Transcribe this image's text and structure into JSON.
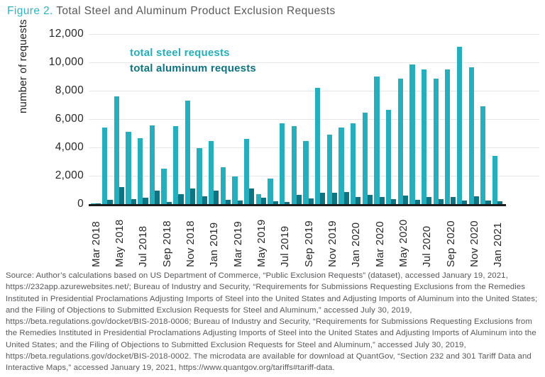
{
  "figure": {
    "label": "Figure 2.",
    "title": " Total Steel and Aluminum Product Exclusion Requests"
  },
  "chart_data": {
    "type": "bar",
    "title": "Figure 2. Total Steel and Aluminum Product Exclusion Requests",
    "xlabel": "",
    "ylabel": "number of requests",
    "ylim": [
      0,
      12000
    ],
    "ytick_step": 2000,
    "yticks": [
      "12,000",
      "10,000",
      "8,000",
      "6,000",
      "4,000",
      "2,000",
      "0"
    ],
    "grid": "horizontal",
    "legend_position": "top-left-inside",
    "categories": [
      "Mar 2018",
      "Apr 2018",
      "May 2018",
      "Jun 2018",
      "Jul 2018",
      "Aug 2018",
      "Sep 2018",
      "Oct 2018",
      "Nov 2018",
      "Dec 2018",
      "Jan 2019",
      "Feb 2019",
      "Mar 2019",
      "Apr 2019",
      "May 2019",
      "Jun 2019",
      "Jul 2019",
      "Aug 2019",
      "Sep 2019",
      "Oct 2019",
      "Nov 2019",
      "Dec 2019",
      "Jan 2020",
      "Feb 2020",
      "Mar 2020",
      "Apr 2020",
      "May 2020",
      "Jun 2020",
      "Jul 2020",
      "Aug 2020",
      "Sep 2020",
      "Oct 2020",
      "Nov 2020",
      "Dec 2020",
      "Jan 2021"
    ],
    "x_tick_labels": [
      "Mar 2018",
      "May 2018",
      "Jul 2018",
      "Sep 2018",
      "Nov 2018",
      "Jan 2019",
      "Mar 2019",
      "May 2019",
      "Jul 2019",
      "Sep 2019",
      "Nov 2019",
      "Jan 2020",
      "Mar 2020",
      "May 2020",
      "Jul 2020",
      "Sep 2020",
      "Nov 2020",
      "Jan 2021"
    ],
    "series": [
      {
        "name": "total steel requests",
        "color": "#26aebd",
        "values": [
          60,
          5400,
          7600,
          5100,
          4650,
          5550,
          2500,
          5500,
          7300,
          3950,
          4450,
          2600,
          1950,
          4600,
          700,
          1800,
          5700,
          5500,
          4450,
          8200,
          4900,
          5400,
          5700,
          6450,
          9000,
          6650,
          8850,
          9850,
          9500,
          8850,
          9500,
          11100,
          9650,
          6900,
          3400
        ]
      },
      {
        "name": "total aluminum requests",
        "color": "#0e7482",
        "values": [
          30,
          300,
          1200,
          350,
          450,
          950,
          150,
          700,
          1100,
          550,
          950,
          300,
          250,
          1100,
          450,
          200,
          150,
          650,
          400,
          800,
          800,
          850,
          500,
          650,
          500,
          350,
          600,
          300,
          500,
          350,
          500,
          250,
          550,
          250,
          200
        ]
      }
    ]
  },
  "source": {
    "text": "Source: Author’s calculations based on US Department of Commerce, “Public Exclusion Requests” (dataset), accessed January 19, 2021, https://232app.azurewebsites.net/; Bureau of Industry and Security, “Requirements for Submissions Requesting Exclusions from the Remedies Instituted in Presidential Proclamations Adjusting Imports of Steel into the United States and Adjusting Imports of Aluminum into the United States; and the Filing of Objections to Submitted Exclusion Requests for Steel and Aluminum,” accessed July 30, 2019, https://beta.regulations.gov/docket/BIS-2018-0006; Bureau of Industry and Security, “Requirements for Submissions Requesting Exclusions from the Remedies Instituted in Presidential Proclamations Adjusting Imports of Steel into the United States and Adjusting Imports of Aluminum into the United States; and the Filing of Objections to Submitted Exclusion Requests for Steel and Aluminum,” accessed July 30, 2019, https://beta.regulations.gov/docket/BIS-2018-0002. The microdata are available for download at QuantGov, “Section 232 and 301 Tariff Data and Interactive Maps,” accessed January 19, 2021, https://www.quantgov.org/tariffs#tariff-data."
  },
  "colors": {
    "steel_bar": "#26aebd",
    "aluminum_bar": "#0e7482",
    "title_accent": "#2db3c4",
    "title_text": "#58595b",
    "axis_text": "#29272b",
    "gridline": "#e7e7e7",
    "baseline": "#1c1c1c",
    "source_text": "#57585b"
  }
}
